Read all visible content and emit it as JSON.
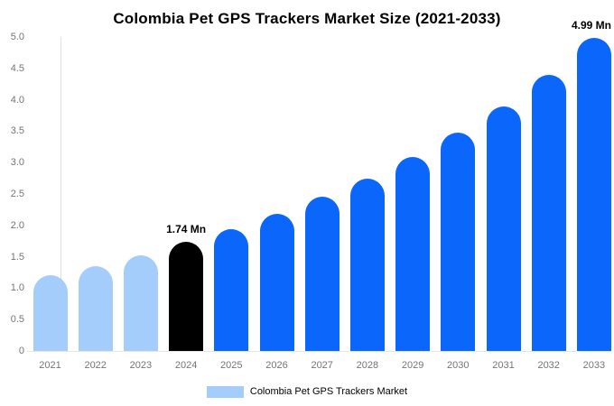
{
  "title": "Colombia Pet GPS Trackers Market Size (2021-2033)",
  "legend": {
    "label": "Colombia Pet GPS Trackers Market",
    "swatch_color": "#a4cdfb"
  },
  "colors": {
    "historical": "#a4cdfb",
    "current": "#000000",
    "forecast": "#0b66fb",
    "axis_line": "#e0e0e0",
    "baseline": "#e6e6e6",
    "tick_text": "#757575",
    "title_text": "#000000",
    "annotation_text": "#000000"
  },
  "chart_data": {
    "type": "bar",
    "title": "Colombia Pet GPS Trackers Market Size (2021-2033)",
    "xlabel": "",
    "ylabel": "",
    "unit": "Mn",
    "ylim": [
      0,
      5
    ],
    "grid": false,
    "legend_position": "bottom",
    "y_ticks": [
      "5.0",
      "4.5",
      "4.0",
      "3.5",
      "3.0",
      "2.5",
      "2.0",
      "1.5",
      "1.0",
      "0.5",
      "0"
    ],
    "categories": [
      "2021",
      "2022",
      "2023",
      "2024",
      "2025",
      "2026",
      "2027",
      "2028",
      "2029",
      "2030",
      "2031",
      "2032",
      "2033"
    ],
    "series": [
      {
        "name": "Colombia Pet GPS Trackers Market",
        "values": [
          1.2,
          1.35,
          1.53,
          1.74,
          1.94,
          2.18,
          2.45,
          2.75,
          3.09,
          3.47,
          3.9,
          4.39,
          4.99
        ]
      }
    ],
    "bar_roles": [
      "historical",
      "historical",
      "historical",
      "current",
      "forecast",
      "forecast",
      "forecast",
      "forecast",
      "forecast",
      "forecast",
      "forecast",
      "forecast",
      "forecast"
    ],
    "annotations": [
      {
        "category": "2024",
        "text": "1.74 Mn"
      },
      {
        "category": "2033",
        "text": "4.99 Mn"
      }
    ]
  }
}
